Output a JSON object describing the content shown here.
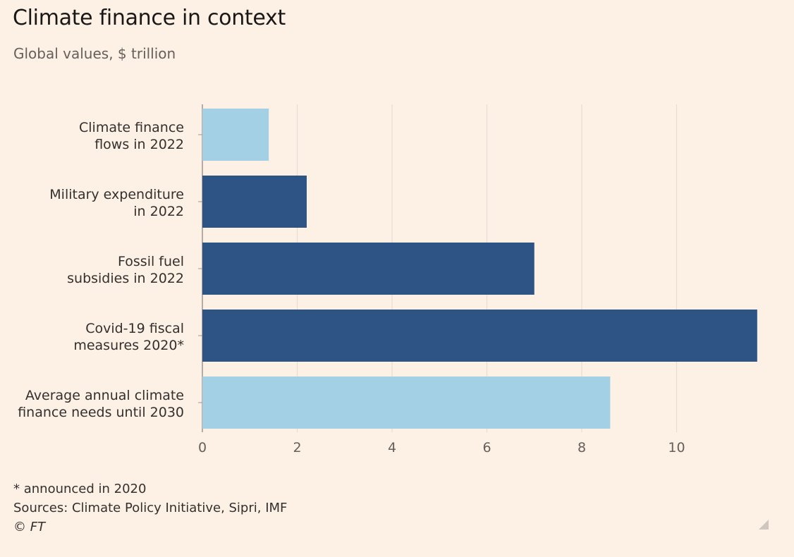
{
  "header": {
    "title": "Climate finance in context",
    "subtitle": "Global values, $ trillion"
  },
  "footer": {
    "note": "* announced in 2020",
    "sources": "Sources: Climate Policy Initiative, Sipri, IMF",
    "copyright": "© FT"
  },
  "colors": {
    "light_bar": "#a3d0e4",
    "dark_bar": "#2e5385",
    "grid": "#e8ddd4",
    "axis": "#9e9590",
    "text": "#33302e"
  },
  "chart_data": {
    "type": "bar",
    "orientation": "horizontal",
    "title": "Climate finance in context",
    "subtitle": "Global values, $ trillion",
    "categories": [
      "Climate finance flows in 2022",
      "Military expenditure in 2022",
      "Fossil fuel subsidies in 2022",
      "Covid-19 fiscal measures 2020*",
      "Average annual climate finance needs until 2030"
    ],
    "category_label_lines": [
      [
        "Climate finance",
        "flows in 2022"
      ],
      [
        "Military expenditure",
        "in 2022"
      ],
      [
        "Fossil fuel",
        "subsidies in 2022"
      ],
      [
        "Covid-19 fiscal",
        "measures 2020*"
      ],
      [
        "Average annual climate",
        "finance needs until 2030"
      ]
    ],
    "values": [
      1.4,
      2.2,
      7.0,
      11.7,
      8.6
    ],
    "bar_colors": [
      "light",
      "dark",
      "dark",
      "dark",
      "light"
    ],
    "xlim": [
      0,
      12
    ],
    "xticks": [
      0,
      2,
      4,
      6,
      8,
      10
    ],
    "grid": true,
    "legend": "none"
  }
}
